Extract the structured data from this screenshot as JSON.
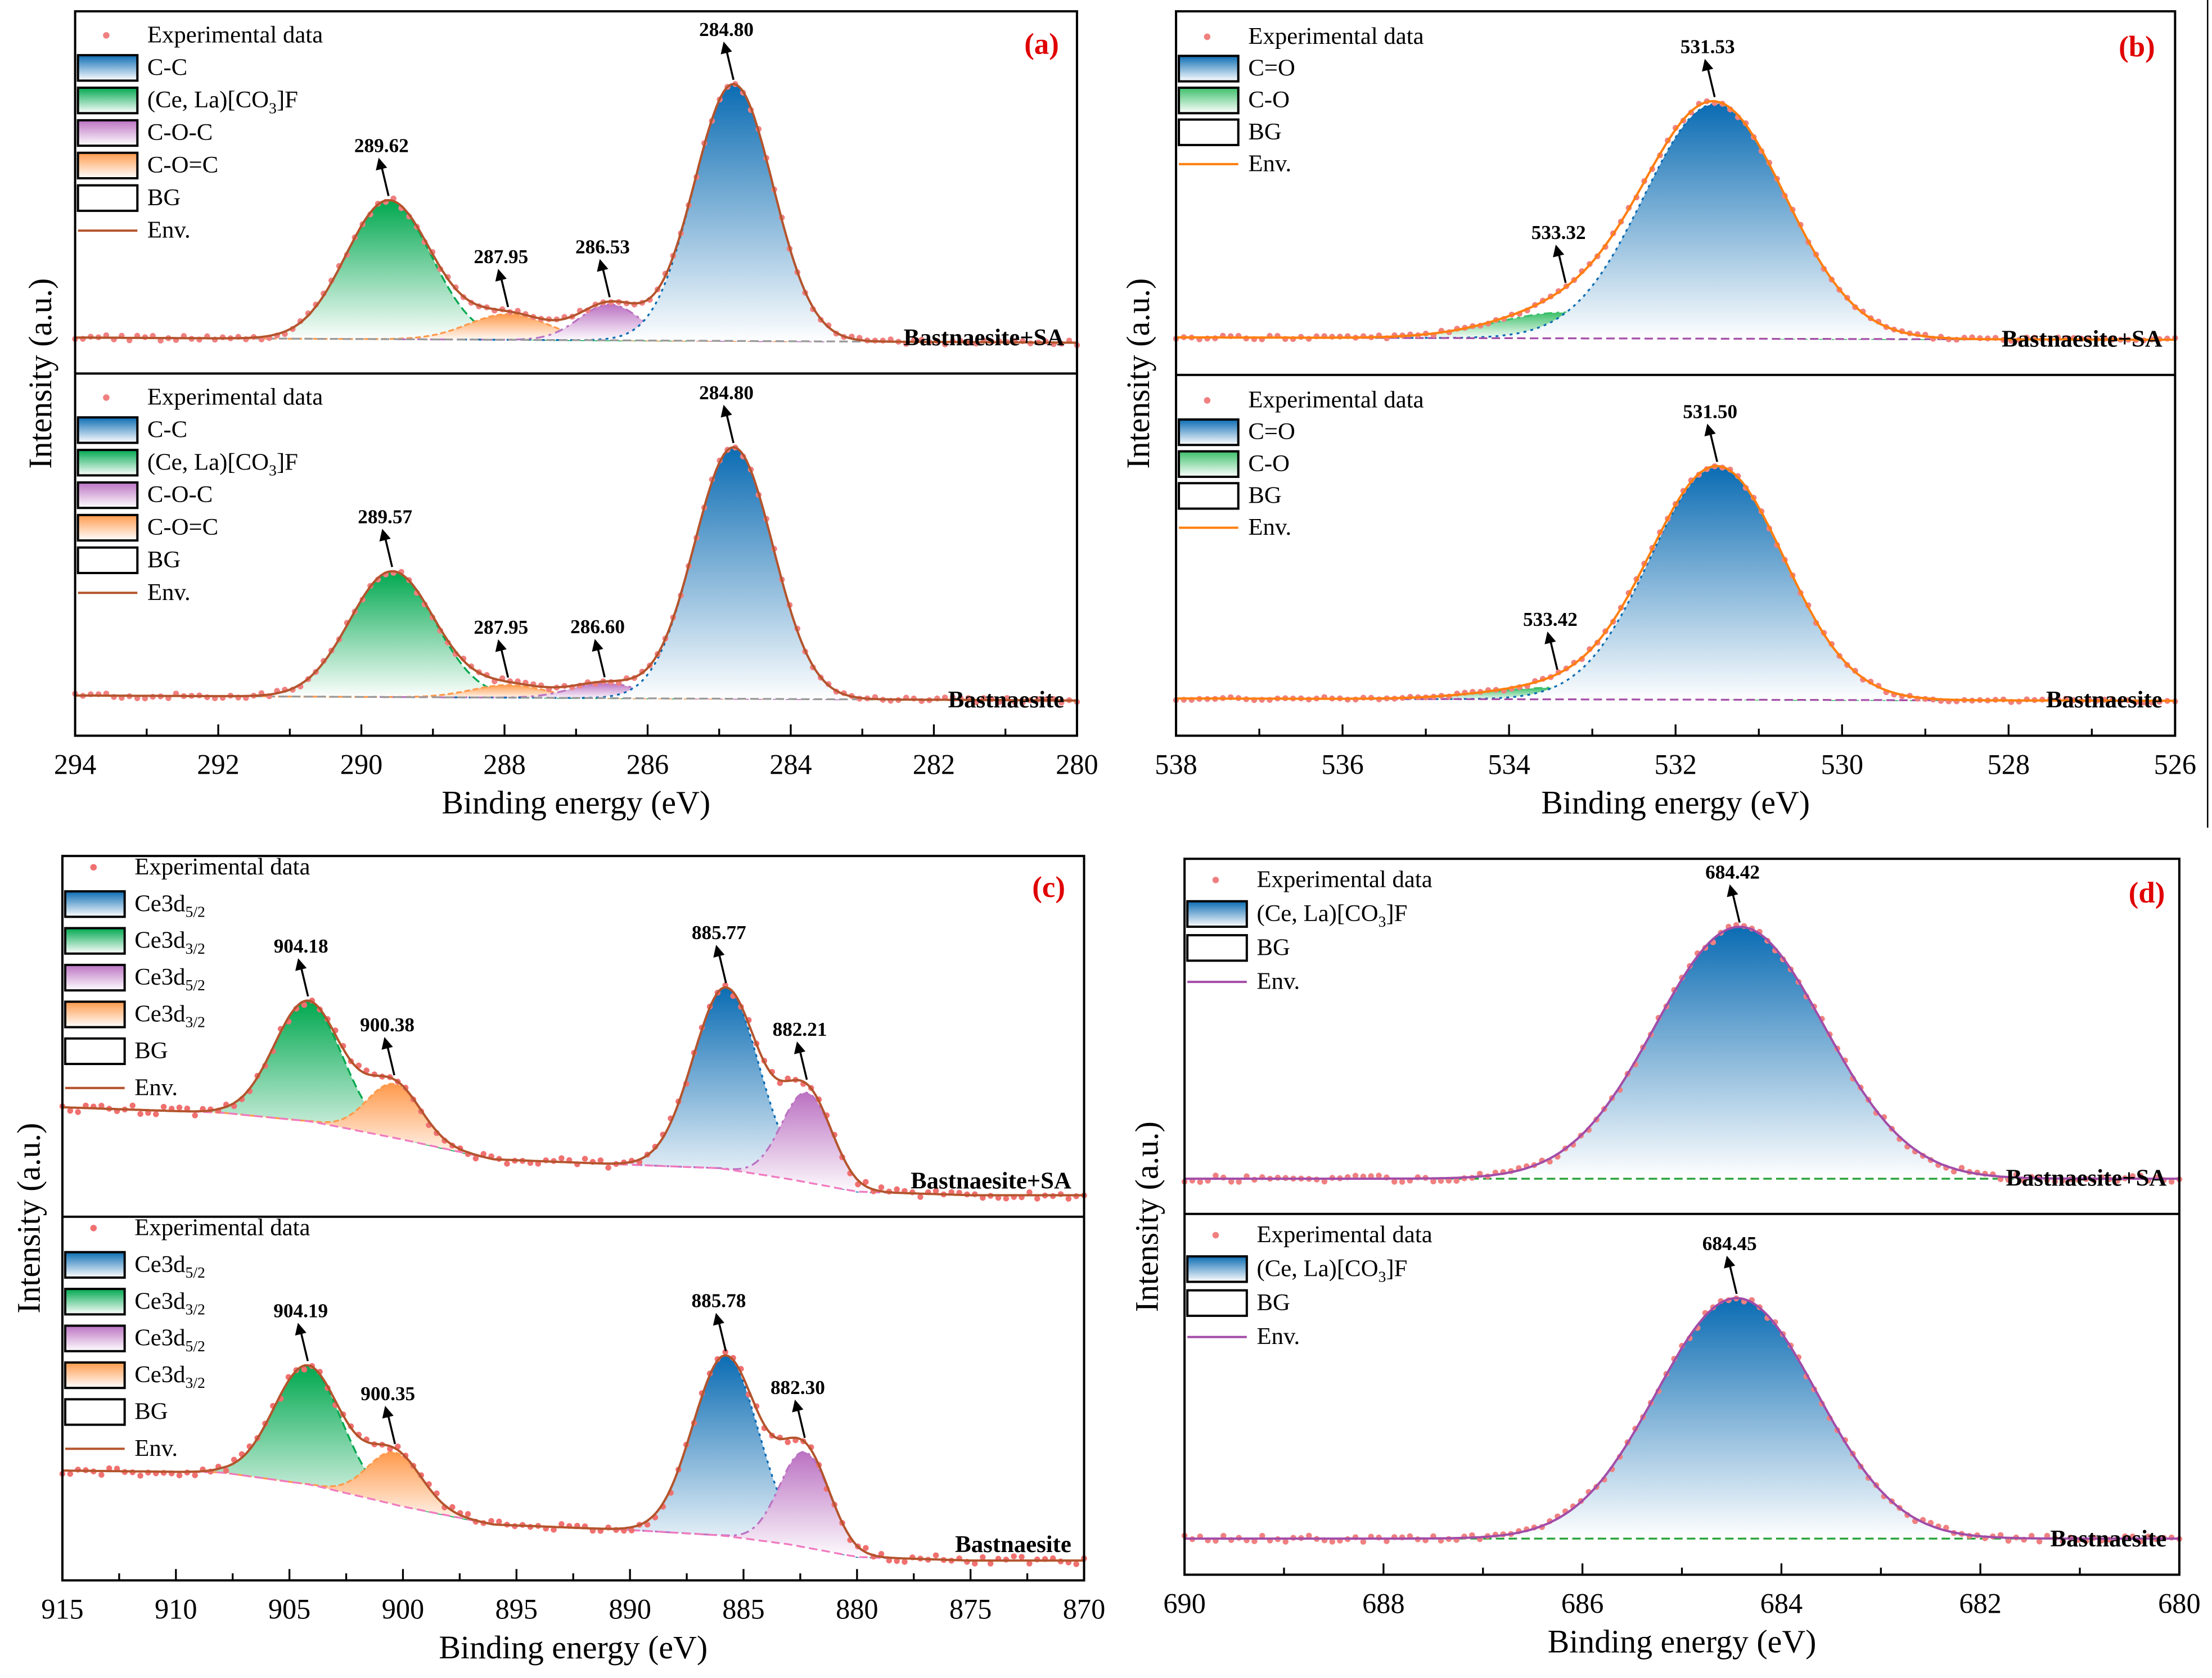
{
  "chart_data": [
    {
      "panel": "(a)",
      "type": "line",
      "xlabel": "Binding energy (eV)",
      "ylabel": "Intensity (a.u.)",
      "xlim": [
        294,
        280
      ],
      "xticks": [
        294,
        292,
        290,
        288,
        286,
        284,
        282,
        280
      ],
      "x_reversed": true,
      "envelope_color": "#b4542d",
      "bg_color": "#9a9a9a",
      "data_color": "#f08080",
      "subpanels": [
        {
          "sample": "Bastnaesite+SA",
          "ylim": [
            -13,
            128
          ],
          "background": [
            [
              294,
              1
            ],
            [
              280,
              -1
            ]
          ],
          "legend": [
            {
              "kind": "dot",
              "label": "Experimental data"
            },
            {
              "kind": "swatch",
              "label": "C-C",
              "color": "#0b6cb3"
            },
            {
              "kind": "swatch",
              "label": "(Ce, La)[CO",
              "sub": "3",
              "suffix": "]F",
              "color": "#00a84f"
            },
            {
              "kind": "swatch",
              "label": "C-O-C",
              "color": "#bb72c2"
            },
            {
              "kind": "swatch",
              "label": "C-O=C",
              "color": "#ff9a4c"
            },
            {
              "kind": "swatch",
              "label": "BG",
              "color": "#ffffff"
            },
            {
              "kind": "line",
              "label": "Env."
            }
          ],
          "peaks": [
            {
              "component": "(Ce, La)[CO3]F",
              "center": 289.62,
              "height": 54,
              "fwhm": 1.4,
              "color": "#00a84f",
              "label": "289.62"
            },
            {
              "component": "C-O=C",
              "center": 287.95,
              "height": 10,
              "fwhm": 1.3,
              "color": "#ff9a4c",
              "label": "287.95"
            },
            {
              "component": "C-O-C",
              "center": 286.53,
              "height": 14,
              "fwhm": 1.0,
              "color": "#bb72c2",
              "label": "286.53"
            },
            {
              "component": "C-C",
              "center": 284.8,
              "height": 100,
              "fwhm": 1.3,
              "color": "#0b6cb3",
              "label": "284.80"
            }
          ]
        },
        {
          "sample": "Bastnaesite",
          "ylim": [
            -15,
            129
          ],
          "background": [
            [
              294,
              1
            ],
            [
              280,
              -1
            ]
          ],
          "legend": [
            {
              "kind": "dot",
              "label": "Experimental data"
            },
            {
              "kind": "swatch",
              "label": "C-C",
              "color": "#0b6cb3"
            },
            {
              "kind": "swatch",
              "label": "(Ce, La)[CO",
              "sub": "3",
              "suffix": "]F",
              "color": "#00a84f"
            },
            {
              "kind": "swatch",
              "label": "C-O-C",
              "color": "#bb72c2"
            },
            {
              "kind": "swatch",
              "label": "C-O=C",
              "color": "#ff9a4c"
            },
            {
              "kind": "swatch",
              "label": "BG",
              "color": "#ffffff"
            },
            {
              "kind": "line",
              "label": "Env."
            }
          ],
          "peaks": [
            {
              "component": "(Ce, La)[CO3]F",
              "center": 289.57,
              "height": 50,
              "fwhm": 1.4,
              "color": "#00a84f",
              "label": "289.57"
            },
            {
              "component": "C-O=C",
              "center": 287.95,
              "height": 5,
              "fwhm": 1.2,
              "color": "#ff9a4c",
              "label": "287.95"
            },
            {
              "component": "C-O-C",
              "center": 286.6,
              "height": 6,
              "fwhm": 1.1,
              "color": "#bb72c2",
              "label": "286.60"
            },
            {
              "component": "C-C",
              "center": 284.8,
              "height": 100,
              "fwhm": 1.3,
              "color": "#0b6cb3",
              "label": "284.80"
            }
          ]
        }
      ]
    },
    {
      "panel": "(b)",
      "type": "line",
      "xlabel": "Binding energy (eV)",
      "ylabel": "Intensity (a.u.)",
      "xlim": [
        538,
        526
      ],
      "xticks": [
        538,
        536,
        534,
        532,
        530,
        528,
        526
      ],
      "x_reversed": true,
      "envelope_color": "#ff7f0e",
      "bg_color": "#a44fa8",
      "data_color": "#f08080",
      "subpanels": [
        {
          "sample": "Bastnaesite+SA",
          "ylim": [
            -16,
            139
          ],
          "background": [
            [
              538,
              0
            ],
            [
              526,
              -1
            ]
          ],
          "legend": [
            {
              "kind": "dot",
              "label": "Experimental data"
            },
            {
              "kind": "swatch",
              "label": "C=O",
              "color": "#0b6cb3"
            },
            {
              "kind": "swatch",
              "label": "C-O",
              "color": "#3cbf6a"
            },
            {
              "kind": "swatch",
              "label": "BG",
              "color": "#ffffff"
            },
            {
              "kind": "line",
              "label": "Env."
            }
          ],
          "peaks": [
            {
              "component": "C-O",
              "center": 533.32,
              "height": 11,
              "fwhm": 2.0,
              "color": "#3cbf6a",
              "label": "533.32"
            },
            {
              "component": "C=O",
              "center": 531.53,
              "height": 100,
              "fwhm": 2.0,
              "color": "#0b6cb3",
              "label": "531.53"
            }
          ]
        },
        {
          "sample": "Bastnaesite",
          "ylim": [
            -16,
            139
          ],
          "background": [
            [
              538,
              0
            ],
            [
              526,
              -1
            ]
          ],
          "legend": [
            {
              "kind": "dot",
              "label": "Experimental data"
            },
            {
              "kind": "swatch",
              "label": "C=O",
              "color": "#0b6cb3"
            },
            {
              "kind": "swatch",
              "label": "C-O",
              "color": "#3cbf6a"
            },
            {
              "kind": "swatch",
              "label": "BG",
              "color": "#ffffff"
            },
            {
              "kind": "line",
              "label": "Env."
            }
          ],
          "peaks": [
            {
              "component": "C-O",
              "center": 533.42,
              "height": 5,
              "fwhm": 2.0,
              "color": "#3cbf6a",
              "label": "533.42"
            },
            {
              "component": "C=O",
              "center": 531.5,
              "height": 100,
              "fwhm": 1.9,
              "color": "#0b6cb3",
              "label": "531.50"
            }
          ]
        }
      ]
    },
    {
      "panel": "(c)",
      "type": "line",
      "xlabel": "Binding energy (eV)",
      "ylabel": "Intensity (a.u.)",
      "xlim": [
        915,
        870
      ],
      "xticks": [
        915,
        910,
        905,
        900,
        895,
        890,
        885,
        880,
        875,
        870
      ],
      "x_reversed": true,
      "envelope_color": "#b4542d",
      "bg_color": "#f07ac0",
      "data_color": "#f07070",
      "subpanels": [
        {
          "sample": "Bastnaesite+SA",
          "ylim": [
            -12,
            189
          ],
          "background": [
            [
              915,
              49
            ],
            [
              908,
              46
            ],
            [
              904,
              41
            ],
            [
              900,
              31
            ],
            [
              896,
              20
            ],
            [
              890,
              17
            ],
            [
              886,
              15
            ],
            [
              883,
              9
            ],
            [
              880,
              2
            ],
            [
              875,
              0
            ],
            [
              870,
              0
            ]
          ],
          "legend": [
            {
              "kind": "dot",
              "label": "Experimental data"
            },
            {
              "kind": "swatch",
              "label": "Ce3d",
              "sub": "5/2",
              "color": "#0b6cb3"
            },
            {
              "kind": "swatch",
              "label": "Ce3d",
              "sub": "3/2",
              "color": "#00a84f"
            },
            {
              "kind": "swatch",
              "label": "Ce3d",
              "sub": "5/2",
              "color": "#bb72c2"
            },
            {
              "kind": "swatch",
              "label": "Ce3d",
              "sub": "3/2",
              "color": "#ff9a4c"
            },
            {
              "kind": "swatch",
              "label": "BG",
              "color": "#ffffff"
            },
            {
              "kind": "line",
              "label": "Env."
            }
          ],
          "peaks": [
            {
              "component": "Ce3d3/2",
              "center": 904.18,
              "height": 67,
              "fwhm": 3.5,
              "color": "#00a84f",
              "label": "904.18"
            },
            {
              "component": "Ce3d3/2",
              "center": 900.38,
              "height": 30,
              "fwhm": 2.8,
              "color": "#ff9a4c",
              "label": "900.38"
            },
            {
              "component": "Ce3d5/2",
              "center": 885.77,
              "height": 101,
              "fwhm": 3.4,
              "color": "#0b6cb3",
              "label": "885.77"
            },
            {
              "component": "Ce3d5/2",
              "center": 882.21,
              "height": 50,
              "fwhm": 2.6,
              "color": "#bb72c2",
              "label": "882.21"
            }
          ]
        },
        {
          "sample": "Bastnaesite",
          "ylim": [
            -11,
            191
          ],
          "background": [
            [
              915,
              50
            ],
            [
              908,
              49
            ],
            [
              904,
              42
            ],
            [
              900,
              30
            ],
            [
              896,
              20
            ],
            [
              890,
              17
            ],
            [
              886,
              14
            ],
            [
              883,
              9
            ],
            [
              880,
              2
            ],
            [
              875,
              0
            ],
            [
              870,
              0
            ]
          ],
          "legend": [
            {
              "kind": "dot",
              "label": "Experimental data"
            },
            {
              "kind": "swatch",
              "label": "Ce3d",
              "sub": "5/2",
              "color": "#0b6cb3"
            },
            {
              "kind": "swatch",
              "label": "Ce3d",
              "sub": "3/2",
              "color": "#00a84f"
            },
            {
              "kind": "swatch",
              "label": "Ce3d",
              "sub": "5/2",
              "color": "#bb72c2"
            },
            {
              "kind": "swatch",
              "label": "Ce3d",
              "sub": "3/2",
              "color": "#ff9a4c"
            },
            {
              "kind": "swatch",
              "label": "BG",
              "color": "#ffffff"
            },
            {
              "kind": "line",
              "label": "Env."
            }
          ],
          "peaks": [
            {
              "component": "Ce3d3/2",
              "center": 904.19,
              "height": 66,
              "fwhm": 3.5,
              "color": "#00a84f",
              "label": "904.19"
            },
            {
              "component": "Ce3d3/2",
              "center": 900.35,
              "height": 29,
              "fwhm": 2.8,
              "color": "#ff9a4c",
              "label": "900.35"
            },
            {
              "component": "Ce3d5/2",
              "center": 885.78,
              "height": 100,
              "fwhm": 3.4,
              "color": "#0b6cb3",
              "label": "885.78"
            },
            {
              "component": "Ce3d5/2",
              "center": 882.3,
              "height": 53,
              "fwhm": 2.6,
              "color": "#bb72c2",
              "label": "882.30"
            }
          ]
        }
      ]
    },
    {
      "panel": "(d)",
      "type": "line",
      "xlabel": "Binding energy (eV)",
      "ylabel": "Intensity (a.u.)",
      "xlim": [
        690,
        680
      ],
      "xticks": [
        690,
        688,
        686,
        684,
        682,
        680
      ],
      "x_reversed": true,
      "envelope_color": "#a24ca8",
      "bg_color": "#22a036",
      "data_color": "#f08080",
      "subpanels": [
        {
          "sample": "Bastnaesite+SA",
          "ylim": [
            -14,
            127
          ],
          "background": [
            [
              690,
              0
            ],
            [
              680,
              0
            ]
          ],
          "legend": [
            {
              "kind": "dot",
              "label": "Experimental data"
            },
            {
              "kind": "swatch",
              "label": "(Ce, La)[CO",
              "sub": "3",
              "suffix": "]F",
              "color": "#0b6cb3"
            },
            {
              "kind": "swatch",
              "label": "BG",
              "color": "#ffffff"
            },
            {
              "kind": "line",
              "label": "Env."
            }
          ],
          "peaks": [
            {
              "component": "(Ce, La)[CO3]F",
              "center": 684.42,
              "height": 100,
              "fwhm": 2.0,
              "color": "#0b6cb3",
              "label": "684.42"
            }
          ]
        },
        {
          "sample": "Bastnaesite",
          "ylim": [
            -15,
            135
          ],
          "background": [
            [
              690,
              0
            ],
            [
              680,
              0
            ]
          ],
          "legend": [
            {
              "kind": "dot",
              "label": "Experimental data"
            },
            {
              "kind": "swatch",
              "label": "(Ce, La)[CO",
              "sub": "3",
              "suffix": "]F",
              "color": "#0b6cb3"
            },
            {
              "kind": "swatch",
              "label": "BG",
              "color": "#ffffff"
            },
            {
              "kind": "line",
              "label": "Env."
            }
          ],
          "peaks": [
            {
              "component": "(Ce, La)[CO3]F",
              "center": 684.45,
              "height": 100,
              "fwhm": 1.9,
              "color": "#0b6cb3",
              "label": "684.45"
            }
          ]
        }
      ]
    }
  ]
}
